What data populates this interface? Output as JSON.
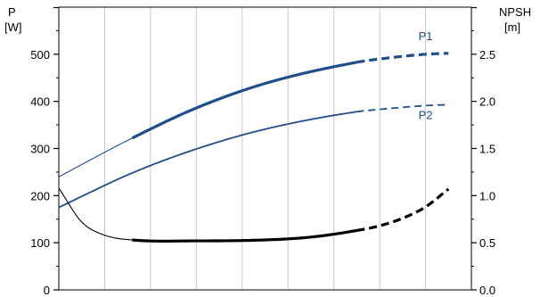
{
  "chart_data": {
    "type": "line",
    "title": "",
    "left_axis": {
      "label_line1": "P",
      "label_line2": "[W]",
      "ylim": [
        0,
        600
      ],
      "ticks": [
        0,
        100,
        200,
        300,
        400,
        500
      ],
      "tick_labels": [
        "0",
        "100",
        "200",
        "300",
        "400",
        "500"
      ]
    },
    "right_axis": {
      "label_line1": "NPSH",
      "label_line2": "[m]",
      "ylim": [
        0,
        3
      ],
      "ticks": [
        0,
        0.5,
        1.0,
        1.5,
        2.0,
        2.5
      ],
      "tick_labels": [
        "0.0",
        "0.5",
        "1.0",
        "1.5",
        "2.0",
        "2.5"
      ]
    },
    "x_axis": {
      "xlim": [
        0,
        9
      ],
      "grid_lines": [
        1,
        2,
        3,
        4,
        5,
        6,
        7,
        8,
        9
      ]
    },
    "grid": true,
    "series": [
      {
        "name": "P1",
        "axis": "left",
        "color": "#1f4e8c",
        "points": [
          [
            0,
            240
          ],
          [
            1.6,
            322
          ],
          [
            3,
            386
          ],
          [
            4.5,
            438
          ],
          [
            6.5,
            483
          ],
          [
            7,
            490
          ],
          [
            8,
            500
          ],
          [
            8.5,
            502
          ]
        ],
        "bold_range": [
          1.6,
          6.5
        ],
        "dashed_from": 6.5
      },
      {
        "name": "P2",
        "axis": "left",
        "color": "#1f4e8c",
        "points": [
          [
            0,
            175
          ],
          [
            1.6,
            248
          ],
          [
            3,
            299
          ],
          [
            4.5,
            341
          ],
          [
            6.5,
            378
          ],
          [
            7,
            383
          ],
          [
            8,
            391
          ],
          [
            8.5,
            393
          ]
        ],
        "bold_range": null,
        "dashed_from": 6.5
      },
      {
        "name": "NPSH",
        "axis": "right",
        "color": "#000000",
        "points": [
          [
            0,
            1.08
          ],
          [
            0.5,
            0.72
          ],
          [
            1,
            0.58
          ],
          [
            1.6,
            0.53
          ],
          [
            3,
            0.52
          ],
          [
            4.5,
            0.53
          ],
          [
            5.5,
            0.56
          ],
          [
            6.5,
            0.63
          ],
          [
            7,
            0.68
          ],
          [
            7.5,
            0.76
          ],
          [
            8,
            0.88
          ],
          [
            8.5,
            1.07
          ]
        ],
        "bold_range": [
          1.6,
          6.5
        ],
        "dashed_from": 6.5
      }
    ],
    "labels": [
      {
        "text": "P1",
        "series": "P1",
        "x": 8.0,
        "y": 530
      },
      {
        "text": "P2",
        "series": "P2",
        "x": 8.0,
        "y": 362
      }
    ]
  }
}
